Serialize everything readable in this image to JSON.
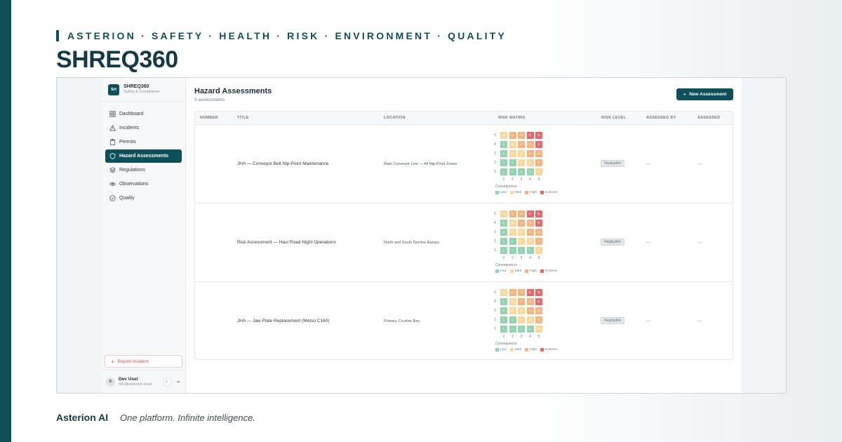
{
  "eyebrow": "ASTERION · SAFETY · HEALTH · RISK · ENVIRONMENT · QUALITY",
  "brand_title": "SHREQ360",
  "sidebar": {
    "logo": "SH",
    "name": "SHREQ360",
    "subtitle": "Safety & Compliance",
    "items": [
      {
        "label": "Dashboard",
        "icon": "grid-icon"
      },
      {
        "label": "Incidents",
        "icon": "warning-icon"
      },
      {
        "label": "Permits",
        "icon": "clipboard-icon"
      },
      {
        "label": "Hazard Assessments",
        "icon": "shield-icon",
        "active": true
      },
      {
        "label": "Regulations",
        "icon": "layers-icon"
      },
      {
        "label": "Observations",
        "icon": "eye-icon"
      },
      {
        "label": "Quality",
        "icon": "check-circle-icon"
      }
    ],
    "report_button": "Report Incident",
    "user": {
      "initial": "D",
      "name": "Dev User",
      "email": "dev@asterion.local"
    }
  },
  "main": {
    "title": "Hazard Assessments",
    "subtitle": "3 assessments",
    "new_button": "New Assessment",
    "columns": [
      "NUMBER",
      "TITLE",
      "LOCATION",
      "RISK MATRIX",
      "RISK LEVEL",
      "ASSESSED BY",
      "ASSESSED"
    ],
    "rows": [
      {
        "number": "",
        "title": "JHA — Conveyor Belt Nip-Point Maintenance",
        "location": "Main Conveyor Line — All Nip-Point Zones",
        "risk_level": "Negligible",
        "assessed_by": "—",
        "assessed": "—"
      },
      {
        "number": "",
        "title": "Risk Assessment — Haul Road Night Operations",
        "location": "North and South Decline Ramps",
        "risk_level": "Negligible",
        "assessed_by": "—",
        "assessed": "—"
      },
      {
        "number": "",
        "title": "JHA — Jaw Plate Replacement (Metso C160)",
        "location": "Primary Crusher Bay",
        "risk_level": "Negligible",
        "assessed_by": "—",
        "assessed": "—"
      }
    ],
    "matrix": {
      "y_labels": [
        "5",
        "4",
        "3",
        "2",
        "1"
      ],
      "x_labels": [
        "1",
        "2",
        "3",
        "4",
        "5"
      ],
      "grid": [
        [
          "M",
          "H",
          "H",
          "E",
          "E"
        ],
        [
          "L",
          "M",
          "H",
          "H",
          "E"
        ],
        [
          "L",
          "M",
          "M",
          "H",
          "H"
        ],
        [
          "L",
          "L",
          "M",
          "M",
          "H"
        ],
        [
          "L",
          "L",
          "L",
          "L",
          "M"
        ]
      ],
      "consequence_label": "Consequence →",
      "legend": [
        {
          "key": "L",
          "label": "Low",
          "color": "#94d3b0"
        },
        {
          "key": "M",
          "label": "Med",
          "color": "#fbd89a"
        },
        {
          "key": "H",
          "label": "High",
          "color": "#f6b37e"
        },
        {
          "key": "E",
          "label": "Extreme",
          "color": "#e7686c"
        }
      ]
    }
  },
  "footer": {
    "brand": "Asterion AI",
    "tagline": "One platform. Infinite intelligence."
  },
  "colors": {
    "primary": "#0e4f5c",
    "danger": "#d9534f"
  }
}
